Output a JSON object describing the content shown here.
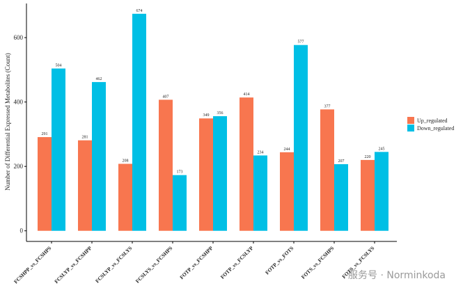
{
  "chart_data": {
    "type": "bar",
    "y_label": "Number of Differential Expressed Metabolites (Count)",
    "categories": [
      "FCSHPP_vs_FCSHPS",
      "FCSLYP_vs_FCSHPP",
      "FCSLYP_vs_FCSLYS",
      "FCSLYS_vs_FCSHPS",
      "FOTP_vs_FCSHPP",
      "FOTP_vs_FCSLYP",
      "FOTP_vs_FOTS",
      "FOTS_vs_FCSHPS",
      "FOTS_vs_FCSLYS"
    ],
    "series": [
      {
        "name": "Up_regulated",
        "color": "#f8764f",
        "values": [
          291,
          281,
          208,
          407,
          349,
          414,
          244,
          377,
          220
        ]
      },
      {
        "name": "Down_regulated",
        "color": "#00bfe5",
        "values": [
          504,
          462,
          674,
          173,
          356,
          234,
          577,
          207,
          245
        ]
      }
    ],
    "ylim": [
      -33,
      706
    ],
    "yticks": [
      0,
      200,
      400,
      600
    ],
    "grid": false,
    "legend": "right",
    "watermark": "服务号 · Norminkoda"
  }
}
